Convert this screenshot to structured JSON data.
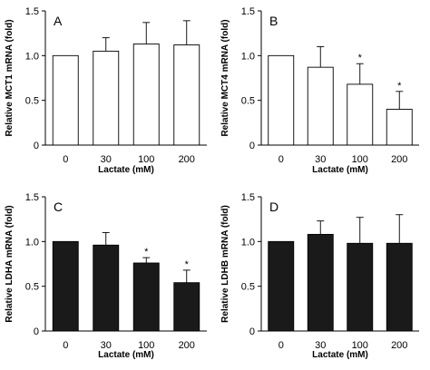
{
  "chart_data": [
    {
      "type": "bar",
      "panel_label": "A",
      "categories": [
        "0",
        "30",
        "100",
        "200"
      ],
      "values": [
        1.0,
        1.05,
        1.13,
        1.12
      ],
      "errors": [
        0,
        0.15,
        0.24,
        0.27
      ],
      "significant": [
        false,
        false,
        false,
        false
      ],
      "bar_fill": "#ffffff",
      "xlabel": "Lactate (mM)",
      "ylabel": "Relative MCT1 mRNA (fold)",
      "ylim": [
        0,
        1.5
      ],
      "yticks": [
        "0",
        "0.5",
        "1.0",
        "1.5"
      ]
    },
    {
      "type": "bar",
      "panel_label": "B",
      "categories": [
        "0",
        "30",
        "100",
        "200"
      ],
      "values": [
        1.0,
        0.87,
        0.68,
        0.4
      ],
      "errors": [
        0,
        0.23,
        0.23,
        0.2
      ],
      "significant": [
        false,
        false,
        true,
        true
      ],
      "bar_fill": "#ffffff",
      "xlabel": "Lactate (mM)",
      "ylabel": "Relative MCT4 mRNA (fold)",
      "ylim": [
        0,
        1.5
      ],
      "yticks": [
        "0",
        "0.5",
        "1.0",
        "1.5"
      ]
    },
    {
      "type": "bar",
      "panel_label": "C",
      "categories": [
        "0",
        "30",
        "100",
        "200"
      ],
      "values": [
        1.0,
        0.96,
        0.76,
        0.54
      ],
      "errors": [
        0,
        0.14,
        0.06,
        0.14
      ],
      "significant": [
        false,
        false,
        true,
        true
      ],
      "bar_fill": "#1a1a1a",
      "xlabel": "Lactate (mM)",
      "ylabel": "Relative LDHA mRNA (fold)",
      "ylim": [
        0,
        1.5
      ],
      "yticks": [
        "0",
        "0.5",
        "1.0",
        "1.5"
      ]
    },
    {
      "type": "bar",
      "panel_label": "D",
      "categories": [
        "0",
        "30",
        "100",
        "200"
      ],
      "values": [
        1.0,
        1.08,
        0.98,
        0.98
      ],
      "errors": [
        0,
        0.15,
        0.29,
        0.32
      ],
      "significant": [
        false,
        false,
        false,
        false
      ],
      "bar_fill": "#1a1a1a",
      "xlabel": "Lactate (mM)",
      "ylabel": "Relative LDHB mRNA (fold)",
      "ylim": [
        0,
        1.5
      ],
      "yticks": [
        "0",
        "0.5",
        "1.0",
        "1.5"
      ]
    }
  ],
  "significance_marker": "*"
}
